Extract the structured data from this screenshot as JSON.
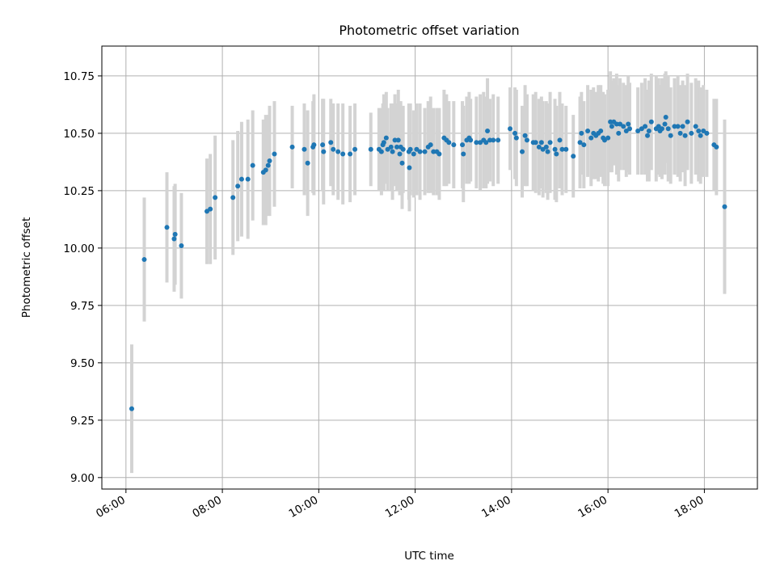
{
  "chart_data": {
    "type": "scatter",
    "title": "Photometric offset variation",
    "xlabel": "UTC time",
    "ylabel": "Photometric offset",
    "x_unit": "hours UTC",
    "xlim": [
      5.5,
      19.1
    ],
    "ylim": [
      8.95,
      10.88
    ],
    "x_ticks": [
      6,
      8,
      10,
      12,
      14,
      16,
      18
    ],
    "x_tick_labels": [
      "06:00",
      "08:00",
      "10:00",
      "12:00",
      "14:00",
      "16:00",
      "18:00"
    ],
    "y_ticks": [
      9.0,
      9.25,
      9.5,
      9.75,
      10.0,
      10.25,
      10.5,
      10.75
    ],
    "y_tick_labels": [
      "9.00",
      "9.25",
      "9.50",
      "9.75",
      "10.00",
      "10.25",
      "10.50",
      "10.75"
    ],
    "grid": true,
    "colors": {
      "points": "#1f77b4",
      "errorbars": "#d3d3d3",
      "grid": "#b0b0b0"
    },
    "series": [
      {
        "values": [
          [
            6.12,
            9.3,
            0.28
          ],
          [
            6.38,
            9.95,
            0.27
          ],
          [
            6.85,
            10.09,
            0.24
          ],
          [
            7.0,
            10.04,
            0.23
          ],
          [
            7.02,
            10.06,
            0.22
          ],
          [
            7.15,
            10.01,
            0.23
          ],
          [
            7.68,
            10.16,
            0.23
          ],
          [
            7.75,
            10.17,
            0.24
          ],
          [
            7.85,
            10.22,
            0.27
          ],
          [
            8.22,
            10.22,
            0.25
          ],
          [
            8.32,
            10.27,
            0.24
          ],
          [
            8.4,
            10.3,
            0.25
          ],
          [
            8.53,
            10.3,
            0.26
          ],
          [
            8.63,
            10.36,
            0.24
          ],
          [
            8.85,
            10.33,
            0.23
          ],
          [
            8.9,
            10.34,
            0.24
          ],
          [
            8.95,
            10.36,
            0.22
          ],
          [
            8.98,
            10.38,
            0.24
          ],
          [
            9.08,
            10.41,
            0.23
          ],
          [
            9.45,
            10.44,
            0.18
          ],
          [
            9.7,
            10.43,
            0.2
          ],
          [
            9.77,
            10.37,
            0.23
          ],
          [
            9.88,
            10.44,
            0.2
          ],
          [
            9.9,
            10.45,
            0.22
          ],
          [
            10.08,
            10.45,
            0.2
          ],
          [
            10.1,
            10.42,
            0.23
          ],
          [
            10.25,
            10.46,
            0.19
          ],
          [
            10.3,
            10.43,
            0.2
          ],
          [
            10.4,
            10.42,
            0.21
          ],
          [
            10.5,
            10.41,
            0.22
          ],
          [
            10.65,
            10.41,
            0.21
          ],
          [
            10.75,
            10.43,
            0.2
          ],
          [
            11.08,
            10.43,
            0.16
          ],
          [
            11.25,
            10.43,
            0.18
          ],
          [
            11.3,
            10.42,
            0.19
          ],
          [
            11.33,
            10.45,
            0.18
          ],
          [
            11.35,
            10.46,
            0.21
          ],
          [
            11.4,
            10.48,
            0.2
          ],
          [
            11.43,
            10.43,
            0.18
          ],
          [
            11.5,
            10.44,
            0.19
          ],
          [
            11.53,
            10.42,
            0.21
          ],
          [
            11.58,
            10.47,
            0.2
          ],
          [
            11.62,
            10.44,
            0.19
          ],
          [
            11.65,
            10.47,
            0.22
          ],
          [
            11.68,
            10.41,
            0.18
          ],
          [
            11.7,
            10.44,
            0.2
          ],
          [
            11.73,
            10.37,
            0.2
          ],
          [
            11.75,
            10.43,
            0.19
          ],
          [
            11.87,
            10.42,
            0.21
          ],
          [
            11.88,
            10.35,
            0.19
          ],
          [
            11.9,
            10.43,
            0.2
          ],
          [
            11.97,
            10.41,
            0.19
          ],
          [
            12.03,
            10.43,
            0.2
          ],
          [
            12.1,
            10.42,
            0.21
          ],
          [
            12.2,
            10.42,
            0.19
          ],
          [
            12.27,
            10.44,
            0.2
          ],
          [
            12.32,
            10.45,
            0.21
          ],
          [
            12.38,
            10.42,
            0.19
          ],
          [
            12.45,
            10.42,
            0.19
          ],
          [
            12.5,
            10.41,
            0.2
          ],
          [
            12.6,
            10.48,
            0.21
          ],
          [
            12.65,
            10.47,
            0.2
          ],
          [
            12.7,
            10.46,
            0.18
          ],
          [
            12.8,
            10.45,
            0.19
          ],
          [
            12.98,
            10.45,
            0.19
          ],
          [
            13.0,
            10.41,
            0.21
          ],
          [
            13.07,
            10.47,
            0.19
          ],
          [
            13.12,
            10.48,
            0.2
          ],
          [
            13.15,
            10.47,
            0.18
          ],
          [
            13.27,
            10.46,
            0.2
          ],
          [
            13.35,
            10.46,
            0.21
          ],
          [
            13.42,
            10.47,
            0.21
          ],
          [
            13.47,
            10.46,
            0.2
          ],
          [
            13.5,
            10.51,
            0.23
          ],
          [
            13.55,
            10.47,
            0.18
          ],
          [
            13.62,
            10.47,
            0.2
          ],
          [
            13.72,
            10.47,
            0.19
          ],
          [
            13.97,
            10.52,
            0.18
          ],
          [
            14.07,
            10.5,
            0.2
          ],
          [
            14.1,
            10.48,
            0.21
          ],
          [
            14.22,
            10.42,
            0.2
          ],
          [
            14.28,
            10.49,
            0.22
          ],
          [
            14.32,
            10.47,
            0.2
          ],
          [
            14.45,
            10.46,
            0.21
          ],
          [
            14.5,
            10.46,
            0.22
          ],
          [
            14.57,
            10.44,
            0.21
          ],
          [
            14.62,
            10.46,
            0.2
          ],
          [
            14.65,
            10.43,
            0.21
          ],
          [
            14.72,
            10.44,
            0.2
          ],
          [
            14.75,
            10.42,
            0.21
          ],
          [
            14.8,
            10.46,
            0.22
          ],
          [
            14.9,
            10.43,
            0.22
          ],
          [
            14.93,
            10.41,
            0.21
          ],
          [
            15.0,
            10.47,
            0.21
          ],
          [
            15.05,
            10.43,
            0.2
          ],
          [
            15.13,
            10.43,
            0.19
          ],
          [
            15.28,
            10.4,
            0.18
          ],
          [
            15.42,
            10.46,
            0.2
          ],
          [
            15.45,
            10.5,
            0.18
          ],
          [
            15.5,
            10.45,
            0.19
          ],
          [
            15.58,
            10.51,
            0.2
          ],
          [
            15.65,
            10.48,
            0.21
          ],
          [
            15.7,
            10.5,
            0.2
          ],
          [
            15.75,
            10.49,
            0.19
          ],
          [
            15.8,
            10.5,
            0.21
          ],
          [
            15.85,
            10.51,
            0.2
          ],
          [
            15.9,
            10.48,
            0.2
          ],
          [
            15.93,
            10.47,
            0.2
          ],
          [
            16.0,
            10.48,
            0.21
          ],
          [
            16.05,
            10.55,
            0.22
          ],
          [
            16.08,
            10.53,
            0.2
          ],
          [
            16.12,
            10.55,
            0.19
          ],
          [
            16.18,
            10.54,
            0.22
          ],
          [
            16.22,
            10.5,
            0.21
          ],
          [
            16.25,
            10.54,
            0.2
          ],
          [
            16.32,
            10.53,
            0.19
          ],
          [
            16.38,
            10.51,
            0.2
          ],
          [
            16.42,
            10.54,
            0.21
          ],
          [
            16.45,
            10.52,
            0.2
          ],
          [
            16.62,
            10.51,
            0.19
          ],
          [
            16.7,
            10.52,
            0.2
          ],
          [
            16.77,
            10.53,
            0.21
          ],
          [
            16.82,
            10.49,
            0.2
          ],
          [
            16.85,
            10.51,
            0.22
          ],
          [
            16.9,
            10.55,
            0.21
          ],
          [
            17.0,
            10.52,
            0.23
          ],
          [
            17.05,
            10.53,
            0.21
          ],
          [
            17.08,
            10.51,
            0.2
          ],
          [
            17.12,
            10.52,
            0.22
          ],
          [
            17.18,
            10.54,
            0.22
          ],
          [
            17.2,
            10.57,
            0.2
          ],
          [
            17.25,
            10.52,
            0.23
          ],
          [
            17.3,
            10.49,
            0.21
          ],
          [
            17.38,
            10.53,
            0.21
          ],
          [
            17.45,
            10.53,
            0.22
          ],
          [
            17.5,
            10.5,
            0.21
          ],
          [
            17.55,
            10.53,
            0.2
          ],
          [
            17.6,
            10.49,
            0.22
          ],
          [
            17.65,
            10.55,
            0.21
          ],
          [
            17.73,
            10.5,
            0.22
          ],
          [
            17.82,
            10.53,
            0.21
          ],
          [
            17.88,
            10.51,
            0.22
          ],
          [
            17.92,
            10.49,
            0.21
          ],
          [
            17.98,
            10.51,
            0.2
          ],
          [
            18.05,
            10.5,
            0.19
          ],
          [
            18.2,
            10.45,
            0.2
          ],
          [
            18.25,
            10.44,
            0.21
          ],
          [
            18.42,
            10.18,
            0.38
          ]
        ]
      }
    ]
  }
}
